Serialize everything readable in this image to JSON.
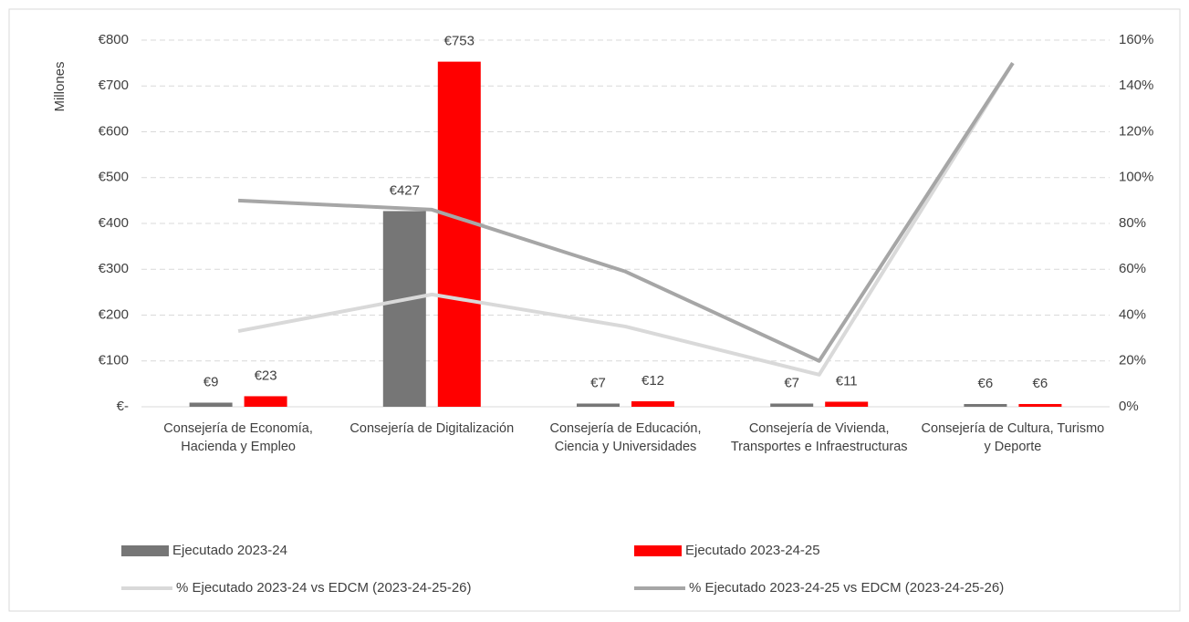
{
  "chart_data": {
    "type": "bar",
    "y_label": "Millones",
    "categories": [
      "Consejería de Economía, Hacienda y Empleo",
      "Consejería de Digitalización",
      "Consejería de Educación, Ciencia y Universidades",
      "Consejería de Vivienda, Transportes e Infraestructuras",
      "Consejería de Cultura, Turismo y Deporte"
    ],
    "series": [
      {
        "name": "Ejecutado 2023-24",
        "type": "bar",
        "color": "#767676",
        "values": [
          9,
          427,
          7,
          7,
          6
        ],
        "value_labels": [
          "€9",
          "€427",
          "€7",
          "€7",
          "€6"
        ]
      },
      {
        "name": "Ejecutado 2023-24-25",
        "type": "bar",
        "color": "#ff0000",
        "values": [
          23,
          753,
          12,
          11,
          6
        ],
        "value_labels": [
          "€23",
          "€753",
          "€12",
          "€11",
          "€6"
        ]
      },
      {
        "name": "% Ejecutado 2023-24 vs EDCM (2023-24-25-26)",
        "type": "line",
        "axis": "y2",
        "color": "#d9d9d9",
        "values": [
          33,
          49,
          35,
          14,
          150
        ]
      },
      {
        "name": "% Ejecutado 2023-24-25 vs EDCM (2023-24-25-26)",
        "type": "line",
        "axis": "y2",
        "color": "#a6a6a6",
        "values": [
          90,
          86,
          59,
          20,
          150
        ]
      }
    ],
    "ylim": [
      0,
      800
    ],
    "yticks": [
      {
        "value": 0,
        "label": "€-"
      },
      {
        "value": 100,
        "label": "€100"
      },
      {
        "value": 200,
        "label": "€200"
      },
      {
        "value": 300,
        "label": "€300"
      },
      {
        "value": 400,
        "label": "€400"
      },
      {
        "value": 500,
        "label": "€500"
      },
      {
        "value": 600,
        "label": "€600"
      },
      {
        "value": 700,
        "label": "€700"
      },
      {
        "value": 800,
        "label": "€800"
      }
    ],
    "y2lim": [
      0,
      160
    ],
    "y2ticks": [
      {
        "value": 0,
        "label": "0%"
      },
      {
        "value": 20,
        "label": "20%"
      },
      {
        "value": 40,
        "label": "40%"
      },
      {
        "value": 60,
        "label": "60%"
      },
      {
        "value": 80,
        "label": "80%"
      },
      {
        "value": 100,
        "label": "100%"
      },
      {
        "value": 120,
        "label": "120%"
      },
      {
        "value": 140,
        "label": "140%"
      },
      {
        "value": 160,
        "label": "160%"
      }
    ],
    "grid": true,
    "legend": "bottom"
  }
}
